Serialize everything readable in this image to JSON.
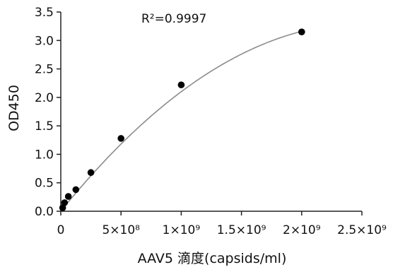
{
  "chart_data": {
    "type": "scatter",
    "xlabel": "AAV5 滴度(capsids/ml)",
    "ylabel": "OD450",
    "xlim": [
      0,
      2500000000
    ],
    "ylim": [
      0,
      3.5
    ],
    "x_ticks": [
      {
        "value": 0,
        "label": "0"
      },
      {
        "value": 500000000,
        "label": "5×10⁸"
      },
      {
        "value": 1000000000,
        "label": "1×10⁹"
      },
      {
        "value": 1500000000,
        "label": "1.5×10⁹"
      },
      {
        "value": 2000000000,
        "label": "2×10⁹"
      },
      {
        "value": 2500000000,
        "label": "2.5×10⁹"
      }
    ],
    "y_ticks": [
      {
        "value": 0,
        "label": "0.0"
      },
      {
        "value": 0.5,
        "label": "0.5"
      },
      {
        "value": 1.0,
        "label": "1.0"
      },
      {
        "value": 1.5,
        "label": "1.5"
      },
      {
        "value": 2.0,
        "label": "2.0"
      },
      {
        "value": 2.5,
        "label": "2.5"
      },
      {
        "value": 3.0,
        "label": "3.0"
      },
      {
        "value": 3.5,
        "label": "3.5"
      }
    ],
    "annotation": "R²=0.9997",
    "grid": false,
    "points": [
      {
        "x": 15625000,
        "y": 0.06
      },
      {
        "x": 31250000,
        "y": 0.15
      },
      {
        "x": 62500000,
        "y": 0.26
      },
      {
        "x": 125000000,
        "y": 0.38
      },
      {
        "x": 250000000,
        "y": 0.68
      },
      {
        "x": 500000000,
        "y": 1.28
      },
      {
        "x": 1000000000,
        "y": 2.22
      },
      {
        "x": 2000000000,
        "y": 3.15
      }
    ],
    "fit": {
      "type": "quadratic",
      "a": -5.2e-19,
      "b": 2.62e-09,
      "c": 0.0
    },
    "colors": {
      "points": "#000000",
      "fit_line": "#8c8c8c",
      "axis": "#222222"
    }
  }
}
